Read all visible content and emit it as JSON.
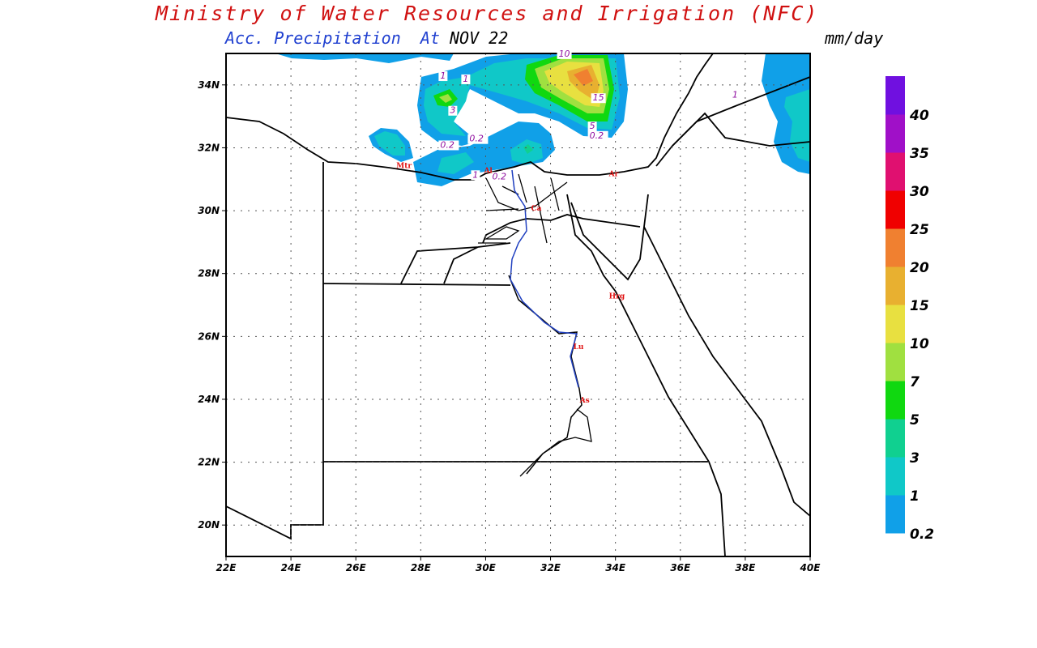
{
  "header": {
    "title": "Ministry of Water Resources and Irrigation (NFC)",
    "subtitle_field": "Acc. Precipitation",
    "subtitle_at": "At",
    "date": "NOV 22",
    "units": "mm/day"
  },
  "map": {
    "lon_range": [
      22,
      40
    ],
    "lat_range": [
      19,
      35
    ],
    "lon_ticks": [
      {
        "v": 22,
        "label": "22E"
      },
      {
        "v": 24,
        "label": "24E"
      },
      {
        "v": 26,
        "label": "26E"
      },
      {
        "v": 28,
        "label": "28E"
      },
      {
        "v": 30,
        "label": "30E"
      },
      {
        "v": 32,
        "label": "32E"
      },
      {
        "v": 34,
        "label": "34E"
      },
      {
        "v": 36,
        "label": "36E"
      },
      {
        "v": 38,
        "label": "38E"
      },
      {
        "v": 40,
        "label": "40E"
      }
    ],
    "lat_ticks": [
      {
        "v": 20,
        "label": "20N"
      },
      {
        "v": 22,
        "label": "22N"
      },
      {
        "v": 24,
        "label": "24N"
      },
      {
        "v": 26,
        "label": "26N"
      },
      {
        "v": 28,
        "label": "28N"
      },
      {
        "v": 30,
        "label": "30N"
      },
      {
        "v": 32,
        "label": "32N"
      },
      {
        "v": 34,
        "label": "34N"
      }
    ],
    "cities": [
      {
        "label": "Mtr",
        "lon": 27.25,
        "lat": 31.35
      },
      {
        "label": "Al",
        "lon": 29.95,
        "lat": 31.2
      },
      {
        "label": "Ca",
        "lon": 31.4,
        "lat": 30.0
      },
      {
        "label": "Ar",
        "lon": 33.8,
        "lat": 31.1
      },
      {
        "label": "Hrg",
        "lon": 33.8,
        "lat": 27.2
      },
      {
        "label": "Lu",
        "lon": 32.7,
        "lat": 25.6
      },
      {
        "label": "As",
        "lon": 32.9,
        "lat": 23.9
      }
    ],
    "contour_labels": [
      {
        "label": "1",
        "lon": 28.6,
        "lat": 34.2
      },
      {
        "label": "1",
        "lon": 29.3,
        "lat": 34.1
      },
      {
        "label": "3",
        "lon": 28.9,
        "lat": 33.1
      },
      {
        "label": "0.2",
        "lon": 28.6,
        "lat": 32.0
      },
      {
        "label": "0.2",
        "lon": 29.5,
        "lat": 32.2
      },
      {
        "label": "10",
        "lon": 32.25,
        "lat": 34.9
      },
      {
        "label": "15",
        "lon": 33.3,
        "lat": 33.5
      },
      {
        "label": "5",
        "lon": 33.2,
        "lat": 32.6
      },
      {
        "label": "0.2",
        "lon": 33.2,
        "lat": 32.3
      },
      {
        "label": "1",
        "lon": 37.6,
        "lat": 33.6
      },
      {
        "label": "1",
        "lon": 29.6,
        "lat": 31.05
      },
      {
        "label": "0.2",
        "lon": 30.2,
        "lat": 31.0
      }
    ]
  },
  "colorbar": {
    "colors": [
      "#10a0e8",
      "#10c8c8",
      "#10d090",
      "#10d810",
      "#a0e040",
      "#e8e040",
      "#e8b030",
      "#f08030",
      "#f00000",
      "#e01070",
      "#a010c8",
      "#7010e0"
    ],
    "labels": [
      "0.2",
      "1",
      "3",
      "5",
      "7",
      "10",
      "15",
      "20",
      "25",
      "30",
      "35",
      "40"
    ]
  }
}
